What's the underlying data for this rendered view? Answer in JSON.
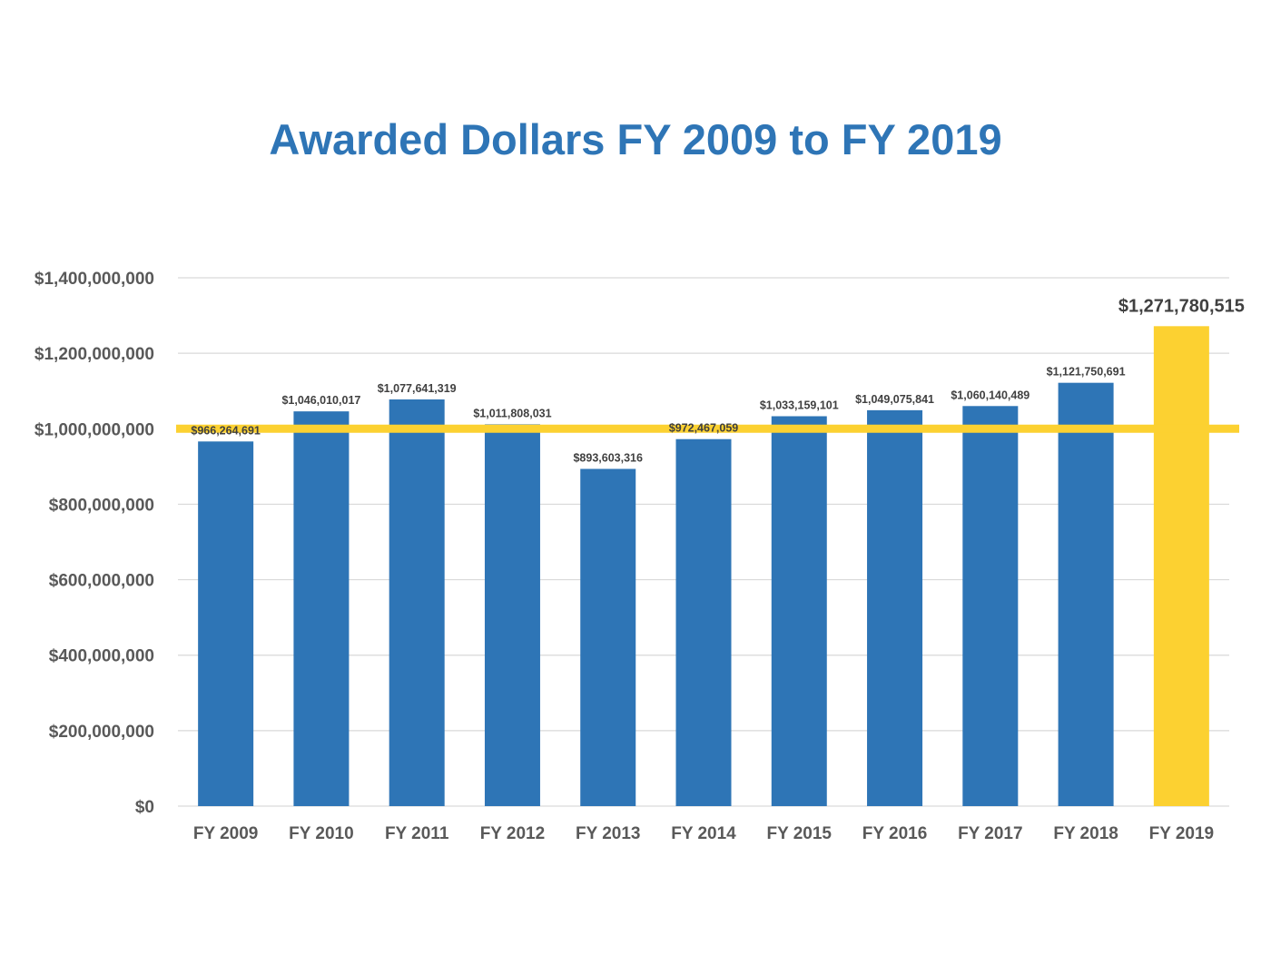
{
  "chart_data": {
    "type": "bar",
    "title": "Awarded Dollars FY 2009 to FY 2019",
    "xlabel": "",
    "ylabel": "",
    "categories": [
      "FY 2009",
      "FY 2010",
      "FY 2011",
      "FY 2012",
      "FY 2013",
      "FY 2014",
      "FY 2015",
      "FY 2016",
      "FY 2017",
      "FY 2018",
      "FY 2019"
    ],
    "values": [
      966264691,
      1046010017,
      1077641319,
      1011808031,
      893603316,
      972467059,
      1033159101,
      1049075841,
      1060140489,
      1121750691,
      1271780515
    ],
    "data_labels": [
      "$966,264,691",
      "$1,046,010,017",
      "$1,077,641,319",
      "$1,011,808,031",
      "$893,603,316",
      "$972,467,059",
      "$1,033,159,101",
      "$1,049,075,841",
      "$1,060,140,489",
      "$1,121,750,691",
      "$1,271,780,515"
    ],
    "ylim": [
      0,
      1400000000
    ],
    "y_ticks": [
      0,
      200000000,
      400000000,
      600000000,
      800000000,
      1000000000,
      1200000000,
      1400000000
    ],
    "y_tick_labels": [
      "$0",
      "$200,000,000",
      "$400,000,000",
      "$600,000,000",
      "$800,000,000",
      "$1,000,000,000",
      "$1,200,000,000",
      "$1,400,000,000"
    ],
    "reference_line": 1000000000,
    "highlight_category": "FY 2019",
    "grid": true,
    "legend": "none",
    "colors": {
      "bar": "#2E75B6",
      "highlight_bar": "#FCD131",
      "reference_line": "#FCD131",
      "title": "#2E75B6",
      "gridline": "#D9D9D9"
    }
  }
}
